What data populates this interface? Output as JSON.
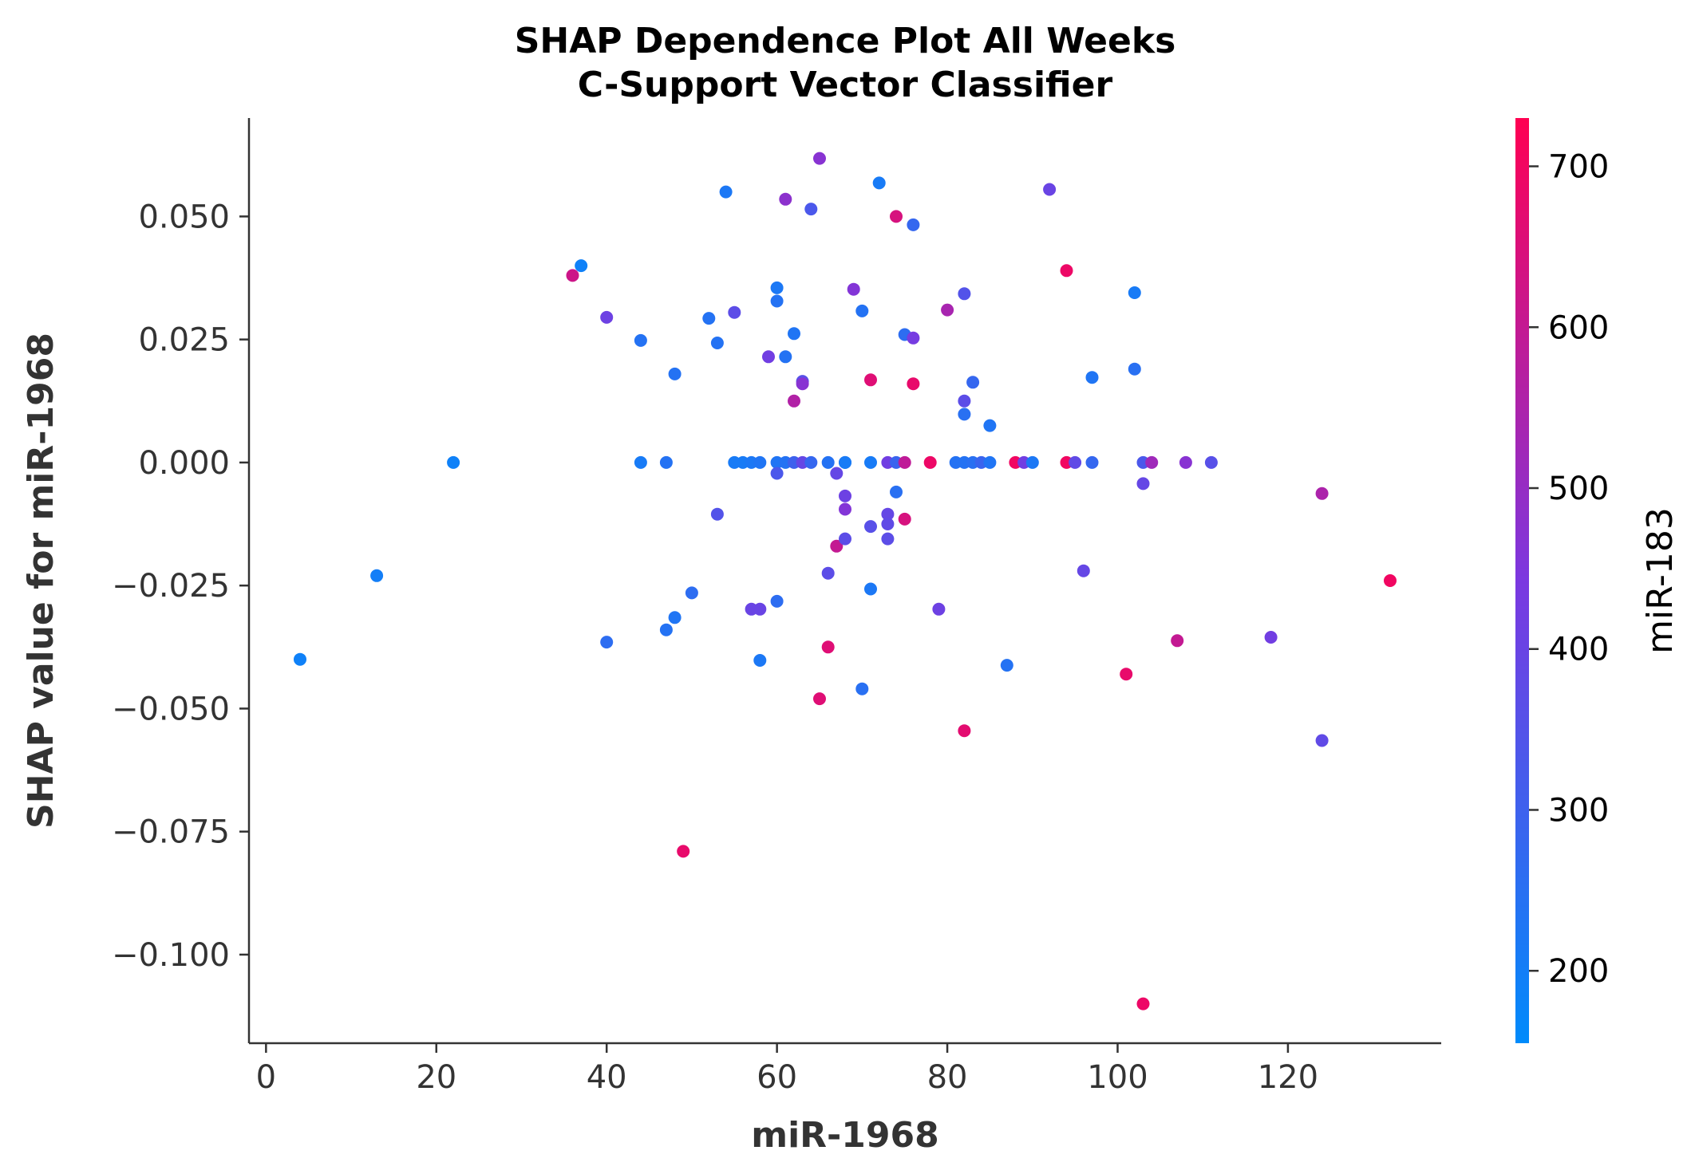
{
  "chart_data": {
    "type": "scatter",
    "title": [
      "SHAP Dependence Plot All Weeks",
      "C-Support Vector Classifier"
    ],
    "xlabel": "miR-1968",
    "ylabel": "SHAP value for miR-1968",
    "color_label": "miR-183",
    "xlim": [
      -2,
      138
    ],
    "ylim": [
      -0.118,
      0.07
    ],
    "xticks": [
      0,
      20,
      40,
      60,
      80,
      100,
      120
    ],
    "xtick_labels": [
      "0",
      "20",
      "40",
      "60",
      "80",
      "100",
      "120"
    ],
    "yticks": [
      0.05,
      0.025,
      0.0,
      -0.025,
      -0.05,
      -0.075,
      -0.1
    ],
    "ytick_labels": [
      "0.050",
      "0.025",
      "0.000",
      "−0.025",
      "−0.050",
      "−0.075",
      "−0.100"
    ],
    "color_range": [
      155,
      730
    ],
    "color_ticks": [
      200,
      300,
      400,
      500,
      600,
      700
    ],
    "color_tick_labels": [
      "200",
      "300",
      "400",
      "500",
      "600",
      "700"
    ],
    "colormap": [
      "#008bfb",
      "#ff0052"
    ],
    "grid": false,
    "points": [
      {
        "x": 4,
        "y": -0.04,
        "c": 190
      },
      {
        "x": 13,
        "y": -0.023,
        "c": 200
      },
      {
        "x": 22,
        "y": 0.0,
        "c": 190
      },
      {
        "x": 36,
        "y": 0.038,
        "c": 620
      },
      {
        "x": 37,
        "y": 0.04,
        "c": 190
      },
      {
        "x": 40,
        "y": 0.0295,
        "c": 410
      },
      {
        "x": 40,
        "y": -0.0365,
        "c": 260
      },
      {
        "x": 44,
        "y": 0.0248,
        "c": 240
      },
      {
        "x": 44,
        "y": 0.0,
        "c": 210
      },
      {
        "x": 47,
        "y": 0.0,
        "c": 240
      },
      {
        "x": 47,
        "y": -0.034,
        "c": 240
      },
      {
        "x": 48,
        "y": 0.018,
        "c": 240
      },
      {
        "x": 48,
        "y": -0.0315,
        "c": 230
      },
      {
        "x": 49,
        "y": -0.079,
        "c": 680
      },
      {
        "x": 50,
        "y": -0.0265,
        "c": 260
      },
      {
        "x": 52,
        "y": 0.0293,
        "c": 240
      },
      {
        "x": 53,
        "y": 0.0243,
        "c": 240
      },
      {
        "x": 53,
        "y": -0.0105,
        "c": 350
      },
      {
        "x": 54,
        "y": 0.055,
        "c": 220
      },
      {
        "x": 55,
        "y": 0.0305,
        "c": 370
      },
      {
        "x": 55,
        "y": 0.0,
        "c": 210
      },
      {
        "x": 56,
        "y": 0.0,
        "c": 210
      },
      {
        "x": 57,
        "y": 0.0,
        "c": 220
      },
      {
        "x": 57,
        "y": -0.0298,
        "c": 400
      },
      {
        "x": 58,
        "y": 0.0,
        "c": 230
      },
      {
        "x": 58,
        "y": -0.0298,
        "c": 400
      },
      {
        "x": 58,
        "y": -0.0402,
        "c": 220
      },
      {
        "x": 59,
        "y": 0.0215,
        "c": 420
      },
      {
        "x": 60,
        "y": 0.0355,
        "c": 220
      },
      {
        "x": 60,
        "y": 0.0328,
        "c": 240
      },
      {
        "x": 60,
        "y": 0.0,
        "c": 230
      },
      {
        "x": 60,
        "y": -0.0022,
        "c": 330
      },
      {
        "x": 60,
        "y": -0.0282,
        "c": 260
      },
      {
        "x": 61,
        "y": 0.0535,
        "c": 480
      },
      {
        "x": 61,
        "y": 0.0215,
        "c": 240
      },
      {
        "x": 61,
        "y": 0.0,
        "c": 240
      },
      {
        "x": 62,
        "y": 0.0262,
        "c": 230
      },
      {
        "x": 62,
        "y": 0.0125,
        "c": 560
      },
      {
        "x": 62,
        "y": 0.0,
        "c": 300
      },
      {
        "x": 63,
        "y": 0.0165,
        "c": 360
      },
      {
        "x": 63,
        "y": 0.016,
        "c": 470
      },
      {
        "x": 63,
        "y": 0.0,
        "c": 390
      },
      {
        "x": 64,
        "y": 0.0515,
        "c": 330
      },
      {
        "x": 64,
        "y": 0.0,
        "c": 280
      },
      {
        "x": 65,
        "y": 0.0618,
        "c": 470
      },
      {
        "x": 65,
        "y": -0.048,
        "c": 660
      },
      {
        "x": 66,
        "y": 0.0,
        "c": 240
      },
      {
        "x": 66,
        "y": -0.0225,
        "c": 370
      },
      {
        "x": 66,
        "y": -0.0375,
        "c": 660
      },
      {
        "x": 67,
        "y": -0.0022,
        "c": 390
      },
      {
        "x": 67,
        "y": -0.017,
        "c": 600
      },
      {
        "x": 68,
        "y": 0.0,
        "c": 240
      },
      {
        "x": 68,
        "y": 0.0,
        "c": 210
      },
      {
        "x": 68,
        "y": -0.0068,
        "c": 410
      },
      {
        "x": 68,
        "y": -0.0095,
        "c": 460
      },
      {
        "x": 68,
        "y": -0.0155,
        "c": 370
      },
      {
        "x": 69,
        "y": 0.0352,
        "c": 460
      },
      {
        "x": 70,
        "y": 0.0308,
        "c": 240
      },
      {
        "x": 70,
        "y": -0.046,
        "c": 250
      },
      {
        "x": 71,
        "y": 0.0168,
        "c": 660
      },
      {
        "x": 71,
        "y": 0.0,
        "c": 210
      },
      {
        "x": 71,
        "y": -0.013,
        "c": 360
      },
      {
        "x": 71,
        "y": -0.0257,
        "c": 220
      },
      {
        "x": 72,
        "y": 0.0568,
        "c": 210
      },
      {
        "x": 73,
        "y": 0.0,
        "c": 420
      },
      {
        "x": 73,
        "y": -0.0105,
        "c": 390
      },
      {
        "x": 73,
        "y": -0.0125,
        "c": 380
      },
      {
        "x": 73,
        "y": -0.0155,
        "c": 370
      },
      {
        "x": 74,
        "y": 0.05,
        "c": 640
      },
      {
        "x": 74,
        "y": 0.0,
        "c": 290
      },
      {
        "x": 74,
        "y": -0.006,
        "c": 250
      },
      {
        "x": 75,
        "y": 0.026,
        "c": 260
      },
      {
        "x": 75,
        "y": 0.0,
        "c": 590
      },
      {
        "x": 75,
        "y": -0.0115,
        "c": 640
      },
      {
        "x": 76,
        "y": 0.0483,
        "c": 280
      },
      {
        "x": 76,
        "y": 0.0253,
        "c": 430
      },
      {
        "x": 76,
        "y": 0.016,
        "c": 680
      },
      {
        "x": 78,
        "y": 0.0,
        "c": 690
      },
      {
        "x": 79,
        "y": -0.0298,
        "c": 410
      },
      {
        "x": 80,
        "y": 0.031,
        "c": 540
      },
      {
        "x": 81,
        "y": 0.0,
        "c": 240
      },
      {
        "x": 82,
        "y": 0.0343,
        "c": 350
      },
      {
        "x": 82,
        "y": 0.0125,
        "c": 370
      },
      {
        "x": 82,
        "y": 0.0098,
        "c": 250
      },
      {
        "x": 82,
        "y": 0.0,
        "c": 240
      },
      {
        "x": 82,
        "y": -0.0545,
        "c": 670
      },
      {
        "x": 83,
        "y": 0.0163,
        "c": 280
      },
      {
        "x": 83,
        "y": 0.0,
        "c": 250
      },
      {
        "x": 84,
        "y": 0.0,
        "c": 290
      },
      {
        "x": 85,
        "y": 0.0075,
        "c": 230
      },
      {
        "x": 85,
        "y": 0.0,
        "c": 230
      },
      {
        "x": 87,
        "y": -0.0412,
        "c": 240
      },
      {
        "x": 88,
        "y": 0.0,
        "c": 700
      },
      {
        "x": 89,
        "y": 0.0,
        "c": 420
      },
      {
        "x": 90,
        "y": 0.0,
        "c": 220
      },
      {
        "x": 92,
        "y": 0.0555,
        "c": 400
      },
      {
        "x": 94,
        "y": 0.039,
        "c": 690
      },
      {
        "x": 94,
        "y": 0.0,
        "c": 700
      },
      {
        "x": 95,
        "y": 0.0,
        "c": 380
      },
      {
        "x": 96,
        "y": -0.022,
        "c": 390
      },
      {
        "x": 97,
        "y": 0.0173,
        "c": 230
      },
      {
        "x": 97,
        "y": 0.0,
        "c": 280
      },
      {
        "x": 101,
        "y": -0.043,
        "c": 680
      },
      {
        "x": 102,
        "y": 0.0345,
        "c": 210
      },
      {
        "x": 102,
        "y": 0.019,
        "c": 250
      },
      {
        "x": 103,
        "y": 0.0,
        "c": 330
      },
      {
        "x": 103,
        "y": -0.0043,
        "c": 390
      },
      {
        "x": 103,
        "y": -0.11,
        "c": 690
      },
      {
        "x": 104,
        "y": 0.0,
        "c": 520
      },
      {
        "x": 107,
        "y": -0.0362,
        "c": 600
      },
      {
        "x": 108,
        "y": 0.0,
        "c": 470
      },
      {
        "x": 111,
        "y": 0.0,
        "c": 360
      },
      {
        "x": 118,
        "y": -0.0355,
        "c": 420
      },
      {
        "x": 124,
        "y": -0.0063,
        "c": 550
      },
      {
        "x": 124,
        "y": -0.0565,
        "c": 380
      },
      {
        "x": 132,
        "y": -0.024,
        "c": 700
      }
    ]
  }
}
